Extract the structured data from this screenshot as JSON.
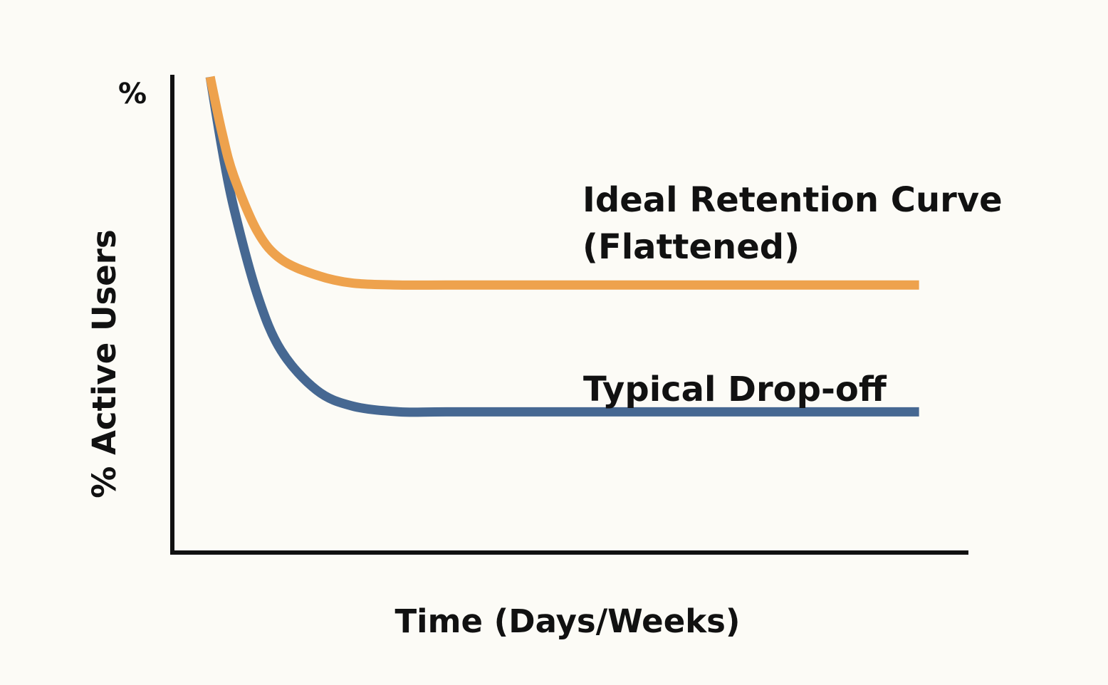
{
  "chart_data": {
    "type": "line",
    "title": "",
    "xlabel": "Time (Days/Weeks)",
    "ylabel": "% Active Users",
    "y_unit_label": "%",
    "grid": false,
    "legend": "none",
    "annotations": [
      {
        "series": "Ideal Retention Curve (Flattened)",
        "lines": [
          "Ideal Retention Curve",
          "(Flattened)"
        ]
      },
      {
        "series": "Typical Drop-off",
        "lines": [
          "Typical Drop-off"
        ]
      }
    ],
    "x": [
      0,
      5,
      10,
      20,
      30,
      45,
      60,
      80,
      100,
      150,
      200,
      250,
      300
    ],
    "series": [
      {
        "name": "Ideal Retention Curve (Flattened)",
        "color": "#eea24d",
        "values": [
          100,
          86,
          75,
          61,
          54,
          50,
          48,
          47.5,
          47.5,
          47.5,
          47.5,
          47.5,
          47.5
        ]
      },
      {
        "name": "Typical Drop-off",
        "color": "#466892",
        "values": [
          100,
          82,
          67,
          45,
          31,
          21,
          17,
          15.5,
          15.5,
          15.5,
          15.5,
          15.5,
          15.5
        ]
      }
    ],
    "xlim": [
      -16,
      320
    ],
    "ylim": [
      -20,
      100
    ]
  }
}
